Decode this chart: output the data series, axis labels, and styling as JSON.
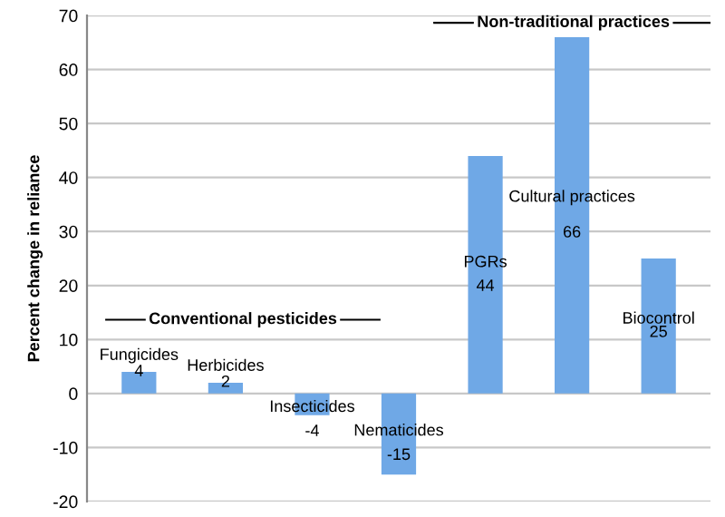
{
  "chart_data": {
    "type": "bar",
    "ylabel": "Percent change in reliance",
    "categories": [
      "Fungicides",
      "Herbicides",
      "Insecticides",
      "Nematicides",
      "PGRs",
      "Cultural practices",
      "Biocontrol"
    ],
    "values": [
      4,
      2,
      -4,
      -15,
      44,
      66,
      25
    ],
    "color": "#6fa8e6",
    "ylim": [
      -20,
      70
    ],
    "yticks": [
      -20,
      -10,
      0,
      10,
      20,
      30,
      40,
      50,
      60,
      70
    ],
    "grid": "y",
    "tick_labels": "y",
    "data_labels": true,
    "annotations": [
      "Conventional pesticides",
      "Non-traditional practices"
    ]
  }
}
